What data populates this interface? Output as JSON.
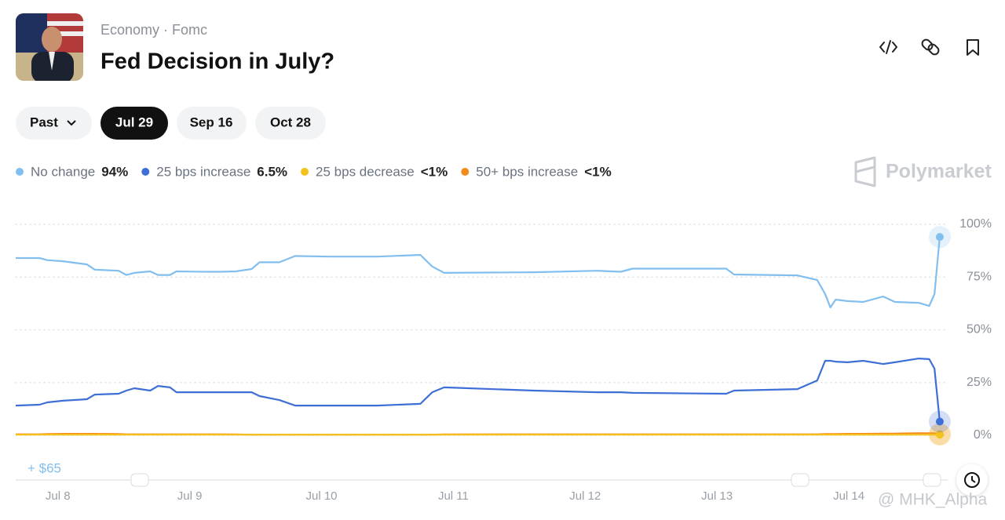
{
  "header": {
    "breadcrumb": "Economy · Fomc",
    "title": "Fed Decision in July?"
  },
  "tabs": [
    "Past",
    "Jul 29",
    "Sep 16",
    "Oct 28"
  ],
  "brand": "Polymarket",
  "position": "+ $65",
  "watermark": "@ MHK_Alpha",
  "chart_data": {
    "type": "line",
    "x": [
      7.68,
      7.86,
      7.92,
      8.04,
      8.22,
      8.28,
      8.46,
      8.52,
      8.58,
      8.7,
      8.76,
      8.85,
      8.9,
      9.11,
      9.23,
      9.35,
      9.47,
      9.53,
      9.68,
      9.8,
      10.07,
      10.42,
      10.75,
      10.84,
      10.93,
      11.61,
      12.09,
      12.27,
      12.36,
      13.07,
      13.13,
      13.61,
      13.76,
      13.82,
      13.86,
      13.9,
      13.99,
      14.11,
      14.26,
      14.35,
      14.53,
      14.61,
      14.65,
      14.69
    ],
    "series": [
      {
        "name": "No change",
        "legend_label": "94%",
        "color": "#82bfee",
        "values": [
          84,
          84,
          83,
          82.5,
          81,
          78.5,
          78,
          76,
          77,
          77.7,
          76,
          76,
          77.7,
          77.5,
          77.5,
          77.7,
          78.8,
          82,
          82,
          85,
          84.7,
          84.7,
          85.5,
          80,
          77,
          77.3,
          78,
          77.5,
          79,
          79,
          76.2,
          75.8,
          73.6,
          67,
          60.6,
          64.3,
          63.6,
          63.2,
          65.8,
          63.2,
          62.8,
          61.3,
          67,
          94
        ]
      },
      {
        "name": "25 bps increase",
        "legend_label": "6.5%",
        "color": "#3d6fd6",
        "values": [
          14.1,
          14.5,
          15.6,
          16.4,
          17.1,
          19.3,
          19.7,
          21.2,
          22.3,
          21.2,
          23.4,
          22.7,
          20.4,
          20.4,
          20.4,
          20.4,
          20.4,
          18.6,
          16.7,
          14.1,
          14.1,
          14.1,
          14.9,
          20.4,
          22.7,
          21.2,
          20.4,
          20.4,
          20.1,
          19.7,
          21.2,
          21.9,
          26,
          35.3,
          35.3,
          34.9,
          34.6,
          35.3,
          33.8,
          34.6,
          36.4,
          36.1,
          31.6,
          6.5
        ]
      },
      {
        "name": "25 bps decrease",
        "legend_label": "<1%",
        "color": "#f4c21b",
        "values": [
          0.3,
          0.3,
          0.3,
          0.3,
          0.3,
          0.3,
          0.3,
          0.3,
          0.3,
          0.3,
          0.3,
          0.3,
          0.3,
          0.3,
          0.3,
          0.3,
          0.3,
          0.3,
          0.3,
          0.3,
          0.3,
          0.3,
          0.3,
          0.3,
          0.3,
          0.3,
          0.3,
          0.3,
          0.3,
          0.3,
          0.3,
          0.3,
          0.3,
          0.3,
          0.3,
          0.3,
          0.3,
          0.3,
          0.3,
          0.3,
          0.3,
          0.3,
          0.3,
          0.3
        ]
      },
      {
        "name": "50+ bps increase",
        "legend_label": "<1%",
        "color": "#f28a1e",
        "values": [
          0.5,
          0.5,
          0.6,
          0.7,
          0.7,
          0.7,
          0.6,
          0.5,
          0.5,
          0.5,
          0.5,
          0.5,
          0.5,
          0.5,
          0.5,
          0.4,
          0.3,
          0.3,
          0.3,
          0.3,
          0.3,
          0.3,
          0.3,
          0.3,
          0.4,
          0.5,
          0.5,
          0.5,
          0.5,
          0.5,
          0.5,
          0.5,
          0.5,
          0.6,
          0.6,
          0.6,
          0.7,
          0.7,
          0.8,
          0.8,
          1,
          1,
          1,
          0.5
        ]
      }
    ],
    "xlim": [
      7.68,
      14.75
    ],
    "xticks": [
      {
        "value": 8,
        "label": "Jul 8"
      },
      {
        "value": 9,
        "label": "Jul 9"
      },
      {
        "value": 10,
        "label": "Jul 10"
      },
      {
        "value": 11,
        "label": "Jul 11"
      },
      {
        "value": 12,
        "label": "Jul 12"
      },
      {
        "value": 13,
        "label": "Jul 13"
      },
      {
        "value": 14,
        "label": "Jul 14"
      }
    ],
    "ylim": [
      0,
      100
    ],
    "yticks": [
      {
        "value": 0,
        "label": "0%"
      },
      {
        "value": 25,
        "label": "25%"
      },
      {
        "value": 50,
        "label": "50%"
      },
      {
        "value": 75,
        "label": "75%"
      },
      {
        "value": 100,
        "label": "100%"
      }
    ],
    "grid": true
  }
}
